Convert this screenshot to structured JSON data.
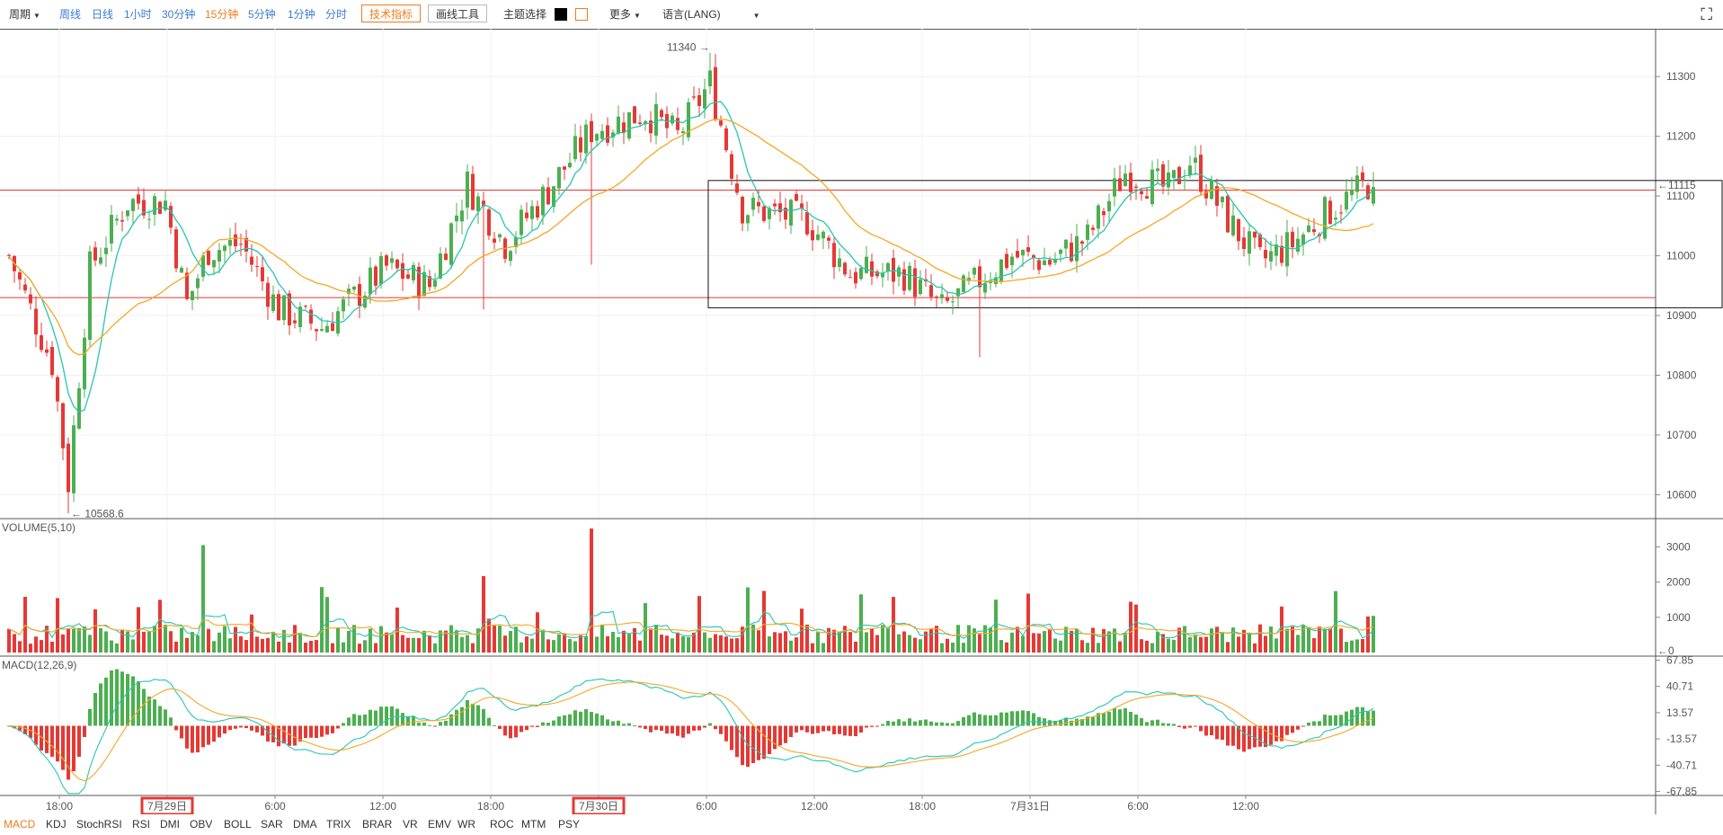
{
  "toolbar": {
    "period": "周期",
    "weekly": "周线",
    "daily": "日线",
    "h1": "1小时",
    "m30": "30分钟",
    "m15": "15分钟",
    "m5": "5分钟",
    "m1": "1分钟",
    "timeshare": "分时",
    "tech_indicator": "技术指标",
    "draw_tool": "画线工具",
    "theme": "主题选择",
    "more": "更多",
    "language": "语言(LANG)"
  },
  "colors": {
    "up": "#4caf50",
    "down": "#e53935",
    "ma_fast": "#26c6b0",
    "ma_slow": "#f5a623",
    "accent": "#f07c1c",
    "highlight_box": "#e53935"
  },
  "chart_data": [
    {
      "type": "candlestick",
      "name": "price",
      "x_ticks": [
        "18:00",
        "7月29日",
        "6:00",
        "12:00",
        "18:00",
        "7月30日",
        "6:00",
        "12:00",
        "18:00",
        "7月31日",
        "6:00",
        "12:00"
      ],
      "highlighted_ticks": [
        "7月29日",
        "7月30日"
      ],
      "y_ticks": [
        10600,
        10700,
        10800,
        10900,
        11000,
        11100,
        11200,
        11300
      ],
      "ylim": [
        10560,
        11380
      ],
      "annotations": {
        "high_label": "11340 →",
        "low_label": "← 10568.6",
        "last_price_label": "←11115",
        "high": 11340,
        "low": 10568.6,
        "last_price": 11115
      },
      "horizontal_lines": [
        11110,
        10930
      ],
      "rectangle": {
        "price_top": 11126,
        "price_bottom": 10913
      },
      "anchors": [
        {
          "t": 0,
          "p": 11000
        },
        {
          "t": 8,
          "p": 10820
        },
        {
          "t": 11,
          "p": 10620
        },
        {
          "t": 15,
          "p": 10980
        },
        {
          "t": 22,
          "p": 11090
        },
        {
          "t": 29,
          "p": 11090
        },
        {
          "t": 33,
          "p": 10920
        },
        {
          "t": 37,
          "p": 11010
        },
        {
          "t": 43,
          "p": 11020
        },
        {
          "t": 50,
          "p": 10910
        },
        {
          "t": 58,
          "p": 10880
        },
        {
          "t": 70,
          "p": 10980
        },
        {
          "t": 78,
          "p": 10950
        },
        {
          "t": 85,
          "p": 11120
        },
        {
          "t": 92,
          "p": 11020
        },
        {
          "t": 100,
          "p": 11110
        },
        {
          "t": 108,
          "p": 11210
        },
        {
          "t": 118,
          "p": 11240
        },
        {
          "t": 124,
          "p": 11200
        },
        {
          "t": 130,
          "p": 11290
        },
        {
          "t": 136,
          "p": 11080
        },
        {
          "t": 148,
          "p": 11060
        },
        {
          "t": 156,
          "p": 10970
        },
        {
          "t": 166,
          "p": 10970
        },
        {
          "t": 173,
          "p": 10910
        },
        {
          "t": 180,
          "p": 10960
        },
        {
          "t": 186,
          "p": 11000
        },
        {
          "t": 193,
          "p": 10990
        },
        {
          "t": 200,
          "p": 11030
        },
        {
          "t": 207,
          "p": 11140
        },
        {
          "t": 215,
          "p": 11110
        },
        {
          "t": 219,
          "p": 11160
        },
        {
          "t": 226,
          "p": 11060
        },
        {
          "t": 232,
          "p": 10990
        },
        {
          "t": 238,
          "p": 11020
        },
        {
          "t": 244,
          "p": 11070
        },
        {
          "t": 252,
          "p": 11120
        },
        {
          "t": 253,
          "p": 11115
        }
      ]
    },
    {
      "type": "bar",
      "name": "volume",
      "title": "VOLUME(5,10)",
      "y_ticks": [
        3000,
        2000,
        1000
      ],
      "zero_label": "←0",
      "ylim": [
        0,
        3700
      ],
      "spikes": [
        {
          "t": 36,
          "v": 3050
        },
        {
          "t": 108,
          "v": 3520
        },
        {
          "t": 88,
          "v": 2170
        },
        {
          "t": 137,
          "v": 1850
        },
        {
          "t": 140,
          "v": 1750
        },
        {
          "t": 158,
          "v": 1650
        },
        {
          "t": 164,
          "v": 1580
        }
      ]
    },
    {
      "type": "bar",
      "name": "macd",
      "title": "MACD(12,26,9)",
      "y_ticks": [
        67.85,
        40.71,
        13.57,
        -13.57,
        -40.71,
        -67.85
      ],
      "ylim": [
        -72,
        72
      ]
    }
  ],
  "indicators": [
    "MACD",
    "KDJ",
    "StochRSI",
    "RSI",
    "DMI",
    "OBV",
    "BOLL",
    "SAR",
    "DMA",
    "TRIX",
    "BRAR",
    "VR",
    "EMV",
    "WR",
    "ROC",
    "MTM",
    "PSY"
  ],
  "active_indicator": "MACD"
}
